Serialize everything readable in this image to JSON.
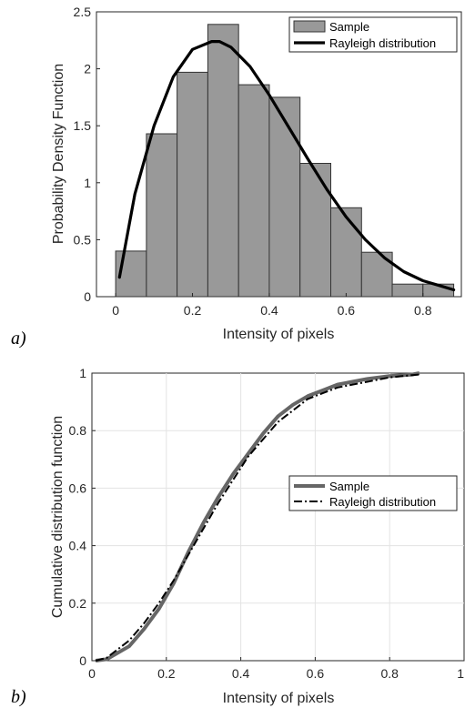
{
  "chart_data": [
    {
      "type": "bar",
      "panel_label": "a)",
      "xlabel": "Intensity of pixels",
      "ylabel": "Probability Density Function",
      "xlim": [
        -0.05,
        0.9
      ],
      "ylim": [
        0,
        2.5
      ],
      "xticks": [
        "0",
        "0.2",
        "0.4",
        "0.6",
        "0.8"
      ],
      "xtick_values": [
        0,
        0.2,
        0.4,
        0.6,
        0.8
      ],
      "yticks": [
        "0",
        "0.5",
        "1",
        "1.5",
        "2",
        "2.5"
      ],
      "ytick_values": [
        0,
        0.5,
        1,
        1.5,
        2,
        2.5
      ],
      "grid": false,
      "legend_position": "top-right",
      "bin_edges": [
        0,
        0.08,
        0.16,
        0.24,
        0.32,
        0.4,
        0.48,
        0.56,
        0.64,
        0.72,
        0.8,
        0.88
      ],
      "bar_values": [
        0.4,
        1.43,
        1.97,
        2.39,
        1.86,
        1.75,
        1.17,
        0.78,
        0.39,
        0.11,
        0.11
      ],
      "series": [
        {
          "name": "Sample",
          "kind": "histogram",
          "color": "#999999"
        },
        {
          "name": "Rayleigh distribution",
          "kind": "line",
          "color": "#000000",
          "x": [
            0.01,
            0.05,
            0.1,
            0.15,
            0.2,
            0.25,
            0.27,
            0.3,
            0.35,
            0.4,
            0.45,
            0.5,
            0.55,
            0.6,
            0.65,
            0.7,
            0.75,
            0.8,
            0.85,
            0.88
          ],
          "y": [
            0.17,
            0.9,
            1.5,
            1.93,
            2.17,
            2.24,
            2.24,
            2.19,
            2.02,
            1.77,
            1.49,
            1.21,
            0.94,
            0.7,
            0.5,
            0.34,
            0.22,
            0.14,
            0.09,
            0.06
          ]
        }
      ]
    },
    {
      "type": "line",
      "panel_label": "b)",
      "xlabel": "Intensity of pixels",
      "ylabel": "Cumulative distribution function",
      "xlim": [
        0,
        1
      ],
      "ylim": [
        0,
        1
      ],
      "xticks": [
        "0",
        "0.2",
        "0.4",
        "0.6",
        "0.8",
        "1"
      ],
      "xtick_values": [
        0,
        0.2,
        0.4,
        0.6,
        0.8,
        1
      ],
      "yticks": [
        "0",
        "0.2",
        "0.4",
        "0.6",
        "0.8",
        "1"
      ],
      "ytick_values": [
        0,
        0.2,
        0.4,
        0.6,
        0.8,
        1
      ],
      "grid": true,
      "legend_position": "middle-right",
      "series": [
        {
          "name": "Sample",
          "color": "#666666",
          "dash": "solid",
          "x": [
            0.01,
            0.04,
            0.06,
            0.1,
            0.14,
            0.18,
            0.22,
            0.26,
            0.3,
            0.34,
            0.38,
            0.42,
            0.46,
            0.5,
            0.54,
            0.58,
            0.62,
            0.66,
            0.7,
            0.74,
            0.8,
            0.86,
            0.88
          ],
          "y": [
            0,
            0.005,
            0.02,
            0.05,
            0.11,
            0.18,
            0.27,
            0.38,
            0.48,
            0.57,
            0.65,
            0.72,
            0.79,
            0.85,
            0.89,
            0.92,
            0.94,
            0.96,
            0.97,
            0.98,
            0.99,
            0.995,
            1.0
          ]
        },
        {
          "name": "Rayleigh distribution",
          "color": "#000000",
          "dash": "dashdot",
          "x": [
            0.01,
            0.04,
            0.06,
            0.1,
            0.14,
            0.18,
            0.22,
            0.26,
            0.3,
            0.34,
            0.38,
            0.42,
            0.46,
            0.5,
            0.54,
            0.58,
            0.62,
            0.66,
            0.7,
            0.74,
            0.8,
            0.86,
            0.88
          ],
          "y": [
            0,
            0.01,
            0.03,
            0.07,
            0.13,
            0.2,
            0.28,
            0.37,
            0.46,
            0.55,
            0.63,
            0.71,
            0.77,
            0.83,
            0.87,
            0.91,
            0.93,
            0.95,
            0.96,
            0.97,
            0.985,
            0.993,
            0.995
          ]
        }
      ]
    }
  ]
}
